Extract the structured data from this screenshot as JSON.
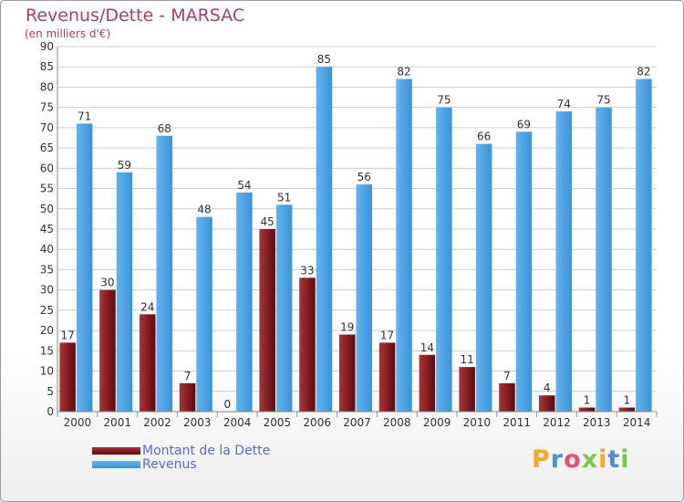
{
  "title": "Revenus/Dette - MARSAC",
  "subtitle": "(en milliers d'€)",
  "logo": {
    "letters": [
      "P",
      "r",
      "o",
      "x",
      "i",
      "t",
      "i"
    ],
    "colors": [
      "#f5a623",
      "#4a90d9",
      "#e94e77",
      "#7ac943",
      "#f5a623",
      "#4a90d9",
      "#7ac943"
    ]
  },
  "chart_data": {
    "type": "bar",
    "title": "Revenus/Dette - MARSAC",
    "subtitle": "(en milliers d'€)",
    "categories": [
      "2000",
      "2001",
      "2002",
      "2003",
      "2004",
      "2005",
      "2006",
      "2007",
      "2008",
      "2009",
      "2010",
      "2011",
      "2012",
      "2013",
      "2014"
    ],
    "series": [
      {
        "name": "Montant de la Dette",
        "color": "#7a1518",
        "values": [
          17,
          30,
          24,
          7,
          0,
          45,
          33,
          19,
          17,
          14,
          11,
          7,
          4,
          1,
          1
        ]
      },
      {
        "name": "Revenus",
        "color": "#4aa3e6",
        "values": [
          71,
          59,
          68,
          48,
          54,
          51,
          85,
          56,
          82,
          75,
          66,
          69,
          74,
          75,
          82
        ]
      }
    ],
    "ylim": [
      0,
      90
    ],
    "yticks": [
      0,
      5,
      10,
      15,
      20,
      25,
      30,
      35,
      40,
      45,
      50,
      55,
      60,
      65,
      70,
      75,
      80,
      85,
      90
    ],
    "grid": true,
    "legend_position": "bottom-left"
  }
}
